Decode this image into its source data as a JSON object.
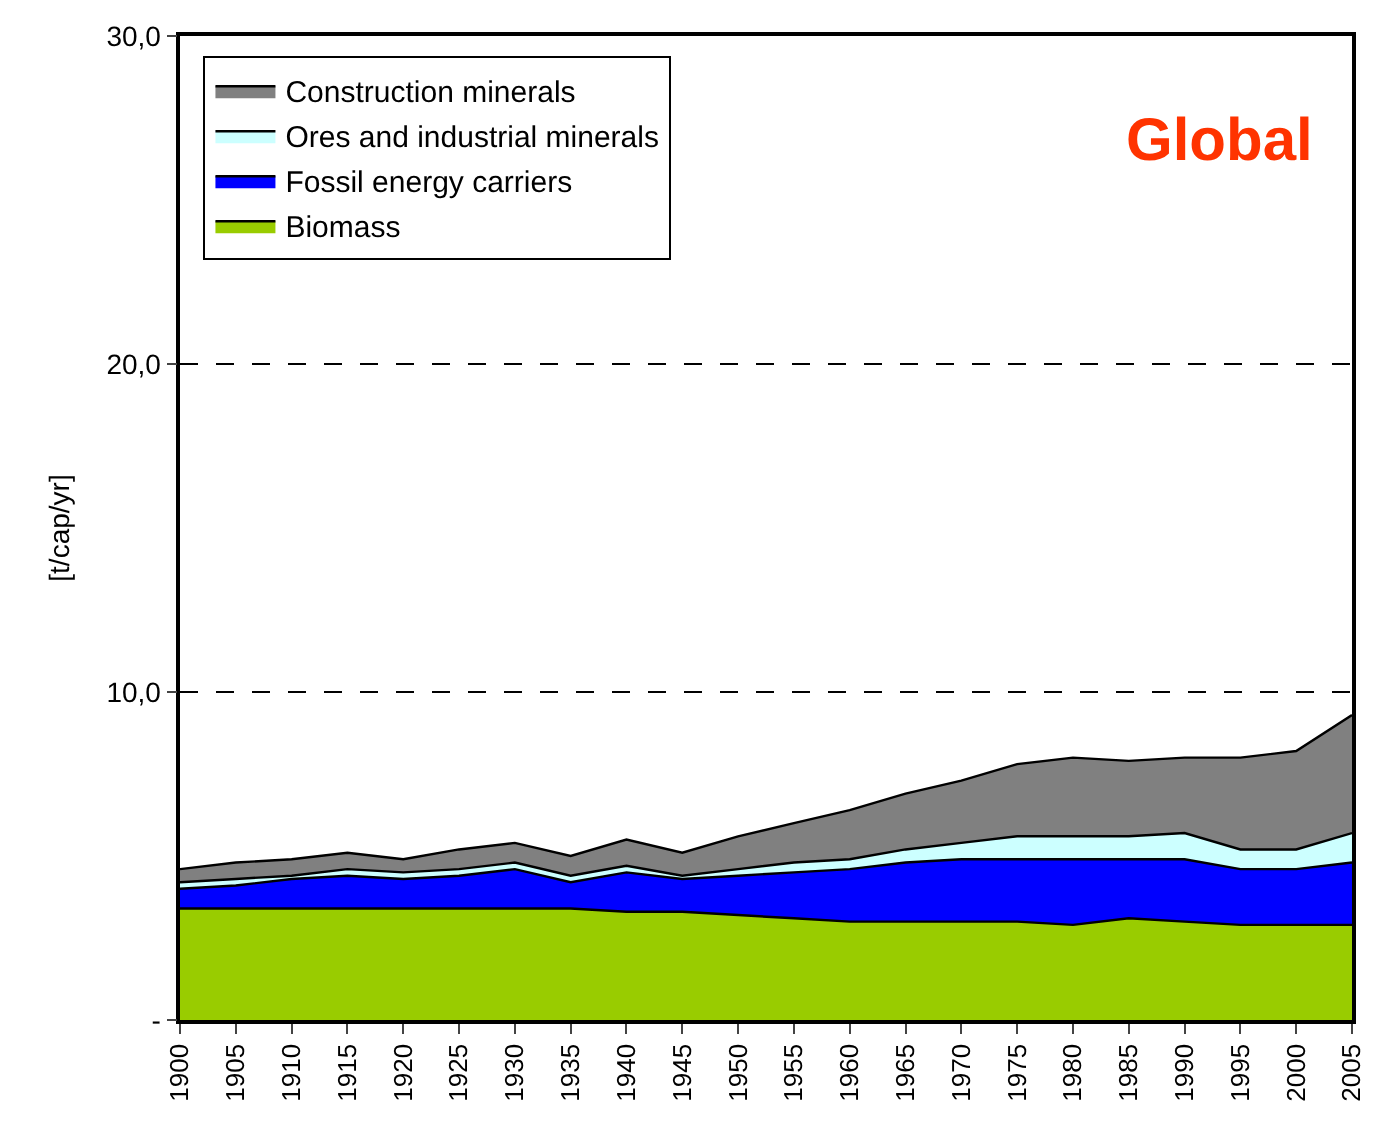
{
  "chart_data": {
    "type": "area",
    "stacked": true,
    "title": "Global",
    "ylabel": "[t/cap/yr]",
    "x": [
      1900,
      1905,
      1910,
      1915,
      1920,
      1925,
      1930,
      1935,
      1940,
      1945,
      1950,
      1955,
      1960,
      1965,
      1970,
      1975,
      1980,
      1985,
      1990,
      1995,
      2000,
      2005
    ],
    "series": [
      {
        "name": "Biomass",
        "color": "#99cc00",
        "values": [
          3.4,
          3.4,
          3.4,
          3.4,
          3.4,
          3.4,
          3.4,
          3.4,
          3.3,
          3.3,
          3.2,
          3.1,
          3.0,
          3.0,
          3.0,
          3.0,
          2.9,
          3.1,
          3.0,
          2.9,
          2.9,
          2.9
        ]
      },
      {
        "name": "Fossil energy carriers",
        "color": "#0000ff",
        "values": [
          0.6,
          0.7,
          0.9,
          1.0,
          0.9,
          1.0,
          1.2,
          0.8,
          1.2,
          1.0,
          1.2,
          1.4,
          1.6,
          1.8,
          1.9,
          1.9,
          2.0,
          1.8,
          1.9,
          1.7,
          1.7,
          1.9
        ]
      },
      {
        "name": "Ores and industrial minerals",
        "color": "#ccffff",
        "values": [
          0.2,
          0.2,
          0.1,
          0.2,
          0.2,
          0.2,
          0.2,
          0.2,
          0.2,
          0.1,
          0.2,
          0.3,
          0.3,
          0.4,
          0.5,
          0.7,
          0.7,
          0.7,
          0.8,
          0.6,
          0.6,
          0.9
        ]
      },
      {
        "name": "Construction minerals",
        "color": "#808080",
        "values": [
          0.4,
          0.5,
          0.5,
          0.5,
          0.4,
          0.6,
          0.6,
          0.6,
          0.8,
          0.7,
          1.0,
          1.2,
          1.5,
          1.7,
          1.9,
          2.2,
          2.4,
          2.3,
          2.3,
          2.8,
          3.0,
          3.6
        ]
      }
    ],
    "xlim": [
      1900,
      2005
    ],
    "xticks": [
      1900,
      1905,
      1910,
      1915,
      1920,
      1925,
      1930,
      1935,
      1940,
      1945,
      1950,
      1955,
      1960,
      1965,
      1970,
      1975,
      1980,
      1985,
      1990,
      1995,
      2000,
      2005
    ],
    "ylim": [
      0,
      30
    ],
    "yticks": [
      {
        "value": 0,
        "label": "-"
      },
      {
        "value": 10,
        "label": "10,0"
      },
      {
        "value": 20,
        "label": "20,0"
      },
      {
        "value": 30,
        "label": "30,0"
      }
    ],
    "grid": "y",
    "legend": "top left"
  }
}
